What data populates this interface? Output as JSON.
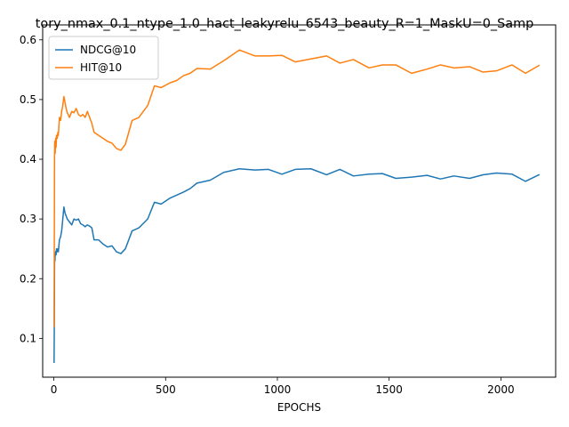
{
  "chart_data": {
    "type": "line",
    "title": "tory_nmax_0.1_ntype_1.0_hact_leakyrelu_6543_beauty_R=1_MaskU=0_Samp",
    "xlabel": "EPOCHS",
    "ylabel": "",
    "xlim": [
      -50,
      2245
    ],
    "ylim": [
      0.035,
      0.625
    ],
    "xticks": [
      0,
      500,
      1000,
      1500,
      2000
    ],
    "yticks": [
      0.1,
      0.2,
      0.3,
      0.4,
      0.5,
      0.6
    ],
    "xtick_labels": [
      "0",
      "500",
      "1000",
      "1500",
      "2000"
    ],
    "ytick_labels": [
      "0.1",
      "0.2",
      "0.3",
      "0.4",
      "0.5",
      "0.6"
    ],
    "legend_position": "upper-left",
    "series": [
      {
        "name": "NDCG@10",
        "color": "#1f77b4",
        "x": [
          1,
          2,
          3,
          4,
          5,
          6,
          8,
          10,
          12,
          15,
          18,
          20,
          25,
          30,
          35,
          40,
          45,
          50,
          55,
          60,
          70,
          80,
          90,
          100,
          110,
          120,
          130,
          140,
          150,
          160,
          170,
          180,
          200,
          220,
          240,
          260,
          280,
          300,
          320,
          350,
          380,
          420,
          450,
          480,
          520,
          550,
          580,
          610,
          640,
          700,
          760,
          830,
          900,
          960,
          1020,
          1080,
          1150,
          1220,
          1280,
          1340,
          1410,
          1470,
          1530,
          1600,
          1670,
          1730,
          1790,
          1860,
          1920,
          1980,
          2050,
          2110,
          2170
        ],
        "values": [
          0.06,
          0.12,
          0.22,
          0.24,
          0.23,
          0.24,
          0.245,
          0.24,
          0.25,
          0.245,
          0.25,
          0.245,
          0.265,
          0.27,
          0.28,
          0.3,
          0.32,
          0.31,
          0.305,
          0.3,
          0.295,
          0.29,
          0.3,
          0.298,
          0.3,
          0.292,
          0.29,
          0.287,
          0.29,
          0.288,
          0.285,
          0.265,
          0.265,
          0.258,
          0.253,
          0.255,
          0.245,
          0.242,
          0.25,
          0.28,
          0.285,
          0.3,
          0.328,
          0.325,
          0.335,
          0.34,
          0.345,
          0.351,
          0.36,
          0.365,
          0.378,
          0.384,
          0.382,
          0.383,
          0.375,
          0.383,
          0.384,
          0.374,
          0.383,
          0.372,
          0.375,
          0.376,
          0.368,
          0.37,
          0.373,
          0.367,
          0.372,
          0.368,
          0.374,
          0.377,
          0.375,
          0.363,
          0.374
        ]
      },
      {
        "name": "HIT@10",
        "color": "#ff7f0e",
        "x": [
          1,
          2,
          3,
          4,
          5,
          6,
          8,
          10,
          12,
          15,
          18,
          20,
          25,
          30,
          35,
          40,
          45,
          50,
          55,
          60,
          70,
          80,
          90,
          100,
          110,
          120,
          130,
          140,
          150,
          160,
          170,
          180,
          200,
          220,
          240,
          260,
          280,
          300,
          320,
          350,
          380,
          420,
          450,
          480,
          520,
          550,
          580,
          610,
          640,
          700,
          760,
          830,
          900,
          960,
          1020,
          1080,
          1150,
          1220,
          1280,
          1340,
          1410,
          1470,
          1530,
          1600,
          1670,
          1730,
          1790,
          1860,
          1920,
          1980,
          2050,
          2110,
          2170
        ],
        "values": [
          0.12,
          0.25,
          0.4,
          0.43,
          0.42,
          0.41,
          0.435,
          0.42,
          0.44,
          0.435,
          0.445,
          0.44,
          0.47,
          0.465,
          0.48,
          0.49,
          0.505,
          0.495,
          0.485,
          0.478,
          0.47,
          0.48,
          0.478,
          0.485,
          0.475,
          0.472,
          0.475,
          0.47,
          0.48,
          0.47,
          0.46,
          0.445,
          0.44,
          0.435,
          0.43,
          0.427,
          0.418,
          0.415,
          0.425,
          0.465,
          0.47,
          0.49,
          0.523,
          0.52,
          0.528,
          0.532,
          0.54,
          0.544,
          0.552,
          0.551,
          0.565,
          0.583,
          0.573,
          0.573,
          0.574,
          0.563,
          0.568,
          0.573,
          0.561,
          0.567,
          0.553,
          0.558,
          0.558,
          0.544,
          0.551,
          0.558,
          0.553,
          0.555,
          0.546,
          0.548,
          0.558,
          0.544,
          0.557
        ]
      }
    ]
  }
}
